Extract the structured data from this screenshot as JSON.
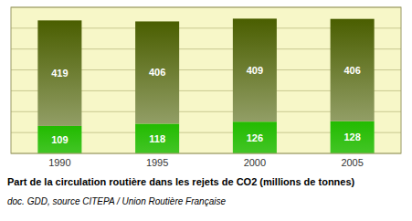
{
  "chart_data": {
    "type": "bar",
    "stacked": true,
    "title": "Part de la circulation routière dans les rejets de CO2 (millions de tonnes)",
    "subtitle": "doc. GDD, source CITEPA / Union Routière Française",
    "categories": [
      "1990",
      "1995",
      "2000",
      "2005"
    ],
    "series": [
      {
        "color": "#22bb00",
        "values": [
          109,
          118,
          126,
          128
        ]
      },
      {
        "color": "#4a5e00",
        "values": [
          419,
          406,
          409,
          406
        ]
      }
    ],
    "ylim": [
      0,
      580
    ],
    "yticks": [
      0,
      82.85714285714286,
      165.71428571428572,
      248.57142857142858,
      331.42857142857144,
      414.2857142857143,
      497.14285714285717,
      580
    ],
    "grid": true,
    "tick_labels": "x",
    "data_labels": true
  }
}
